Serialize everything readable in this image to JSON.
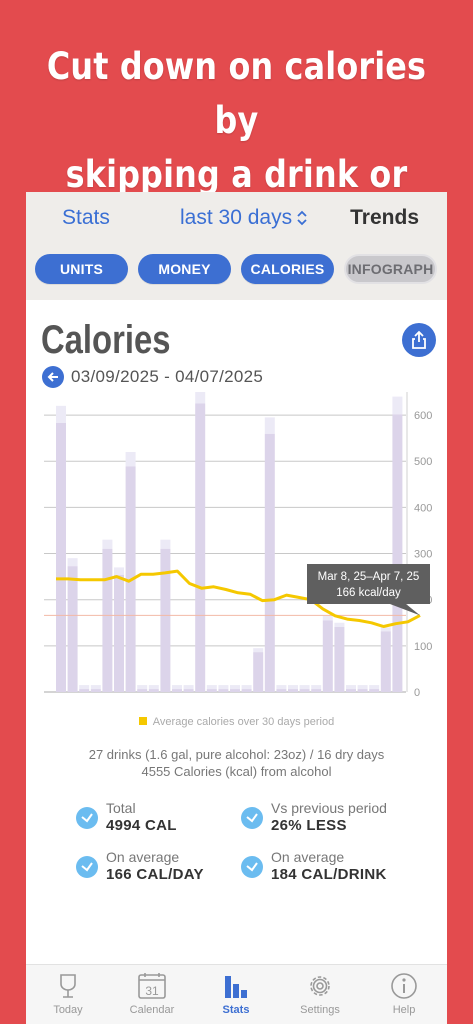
{
  "headline": {
    "line1": "Cut down on calories by",
    "line2": "skipping a drink or two"
  },
  "nav": {
    "left": "Stats",
    "center": "last 30 days",
    "right": "Trends"
  },
  "segments": [
    {
      "label": "UNITS",
      "state": "active"
    },
    {
      "label": "MONEY",
      "state": "active"
    },
    {
      "label": "CALORIES",
      "state": "active"
    },
    {
      "label": "INFOGRAPH",
      "state": "muted"
    }
  ],
  "page": {
    "title": "Calories",
    "date_range": "03/09/2025 - 04/07/2025"
  },
  "chart_data": {
    "type": "bar",
    "x_count": 30,
    "y_ticks": [
      0,
      100,
      200,
      300,
      400,
      500,
      600
    ],
    "ylim": [
      0,
      650
    ],
    "series": [
      {
        "kind": "bar",
        "values": [
          620,
          290,
          15,
          15,
          330,
          270,
          520,
          15,
          15,
          330,
          15,
          15,
          665,
          15,
          15,
          15,
          15,
          95,
          595,
          15,
          15,
          15,
          15,
          165,
          150,
          15,
          15,
          15,
          140,
          640
        ]
      },
      {
        "kind": "line",
        "name": "Average calories over 30 days period",
        "values": [
          245,
          245,
          243,
          243,
          243,
          250,
          240,
          255,
          255,
          258,
          262,
          235,
          225,
          228,
          222,
          215,
          212,
          198,
          200,
          210,
          205,
          200,
          180,
          165,
          158,
          155,
          150,
          142,
          148,
          152,
          166
        ]
      }
    ],
    "reference_value": 166,
    "tooltip": {
      "line1": "Mar 8, 25–Apr 7, 25",
      "line2": "166 kcal/day"
    },
    "legend": "Average calories over 30 days period",
    "colors": {
      "bar": "#dcd4ea",
      "bar_top": "#eceaf6",
      "line": "#f5c800",
      "ref": "#f3b9a6"
    }
  },
  "summary": {
    "line1": "27 drinks (1.6 gal, pure alcohol: 23oz) / 16 dry days",
    "line2": "4555 Calories (kcal) from alcohol"
  },
  "stats": [
    {
      "label": "Total",
      "value": "4994 CAL"
    },
    {
      "label": "Vs previous period",
      "value": "26% LESS"
    },
    {
      "label": "On average",
      "value": "166 CAL/DAY"
    },
    {
      "label": "On average",
      "value": "184 CAL/DRINK"
    }
  ],
  "tabs": [
    {
      "label": "Today",
      "icon": "glass-icon",
      "active": false
    },
    {
      "label": "Calendar",
      "icon": "calendar-icon",
      "active": false,
      "day": "31"
    },
    {
      "label": "Stats",
      "icon": "bar-chart-icon",
      "active": true
    },
    {
      "label": "Settings",
      "icon": "gear-icon",
      "active": false
    },
    {
      "label": "Help",
      "icon": "info-icon",
      "active": false
    }
  ],
  "colors": {
    "background": "#e34b4e",
    "accent": "#3d6fd2",
    "check": "#6bbcf0"
  }
}
